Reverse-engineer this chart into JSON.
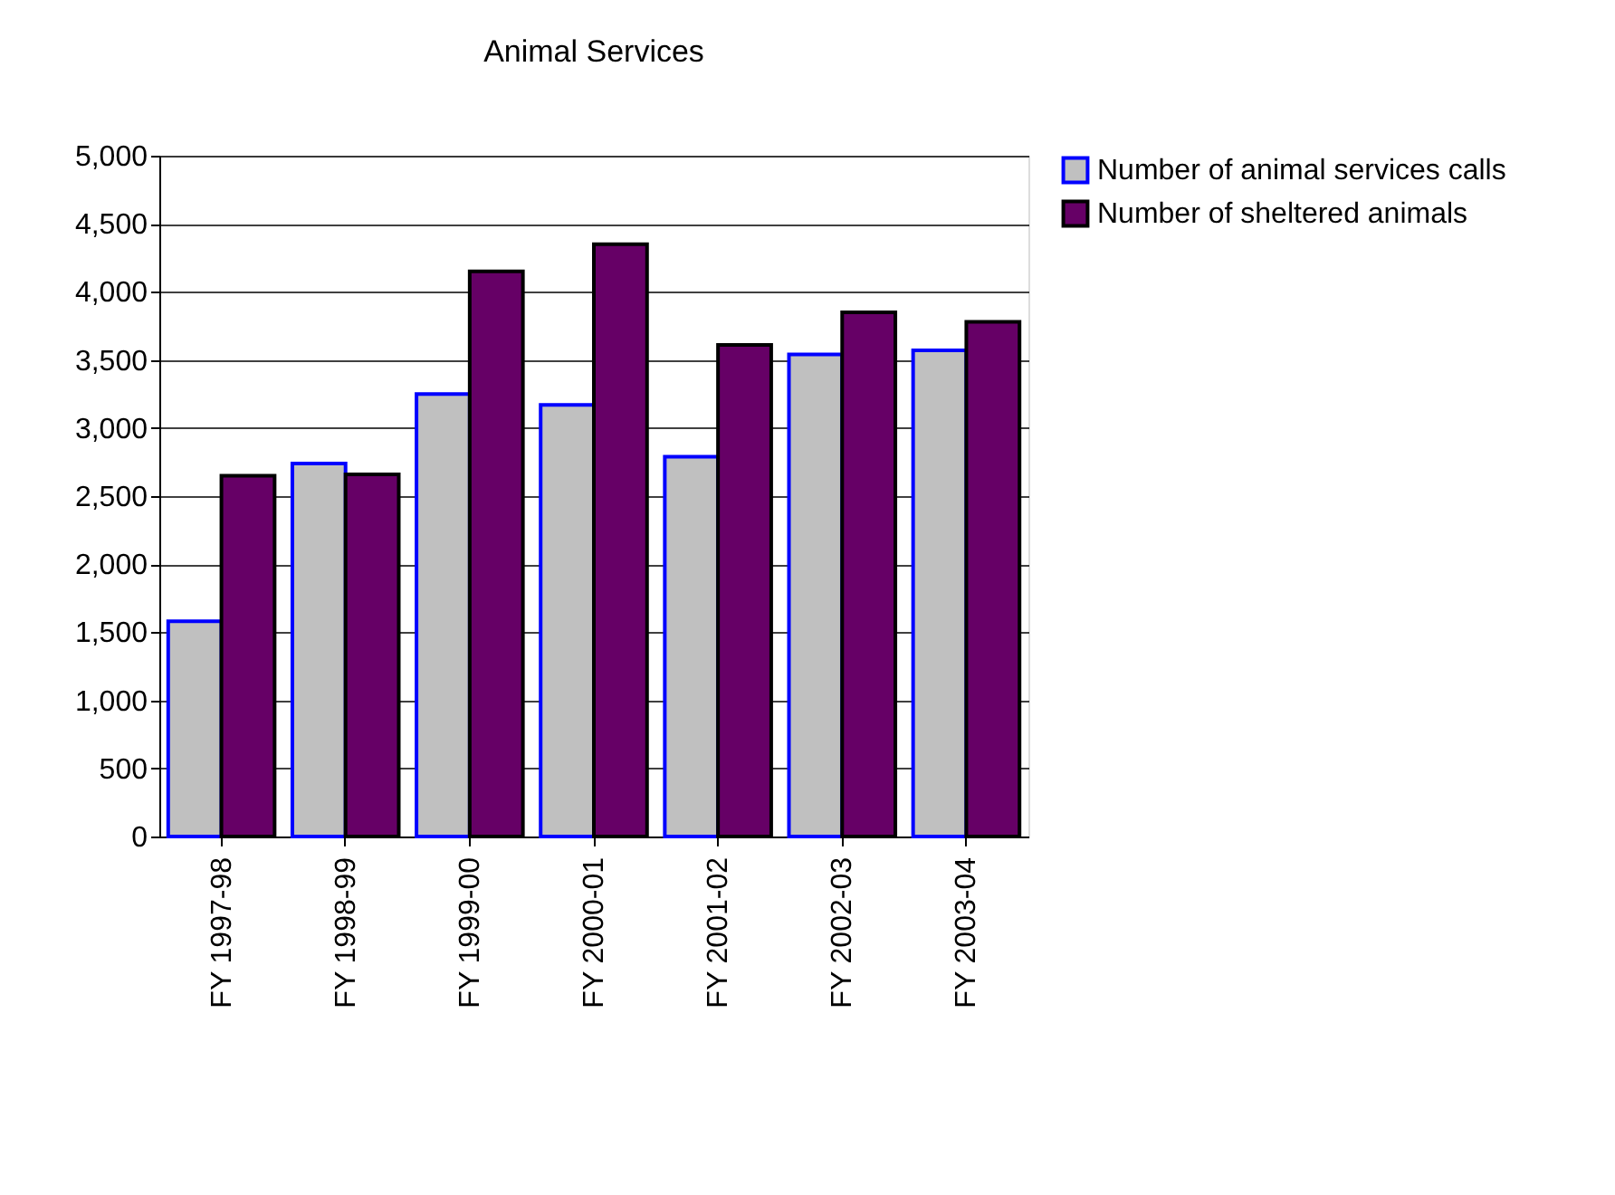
{
  "chart_data": {
    "type": "bar",
    "title": "Animal Services",
    "categories": [
      "FY 1997-98",
      "FY 1998-99",
      "FY 1999-00",
      "FY 2000-01",
      "FY 2001-02",
      "FY 2002-03",
      "FY 2003-04"
    ],
    "series": [
      {
        "name": "Number of animal services calls",
        "color": "#c0c0c0",
        "values": [
          1580,
          2740,
          3250,
          3170,
          2790,
          3540,
          3570
        ]
      },
      {
        "name": "Number of sheltered animals",
        "color": "#660066",
        "values": [
          2650,
          2660,
          4150,
          4350,
          3610,
          3850,
          3780
        ]
      }
    ],
    "ylim": [
      0,
      5000
    ],
    "yticks": [
      0,
      500,
      {
        "value": 1000,
        "label": "1,000"
      },
      {
        "value": 1500,
        "label": "1,500"
      },
      {
        "value": 2000,
        "label": "2,000"
      },
      {
        "value": 2500,
        "label": "2,500"
      },
      {
        "value": 3000,
        "label": "3,000"
      },
      {
        "value": 3500,
        "label": "3,500"
      },
      {
        "value": 4000,
        "label": "4,000"
      },
      {
        "value": 4500,
        "label": "4,500"
      },
      {
        "value": 5000,
        "label": "5,000"
      }
    ],
    "grid": "y",
    "legend": "right"
  }
}
